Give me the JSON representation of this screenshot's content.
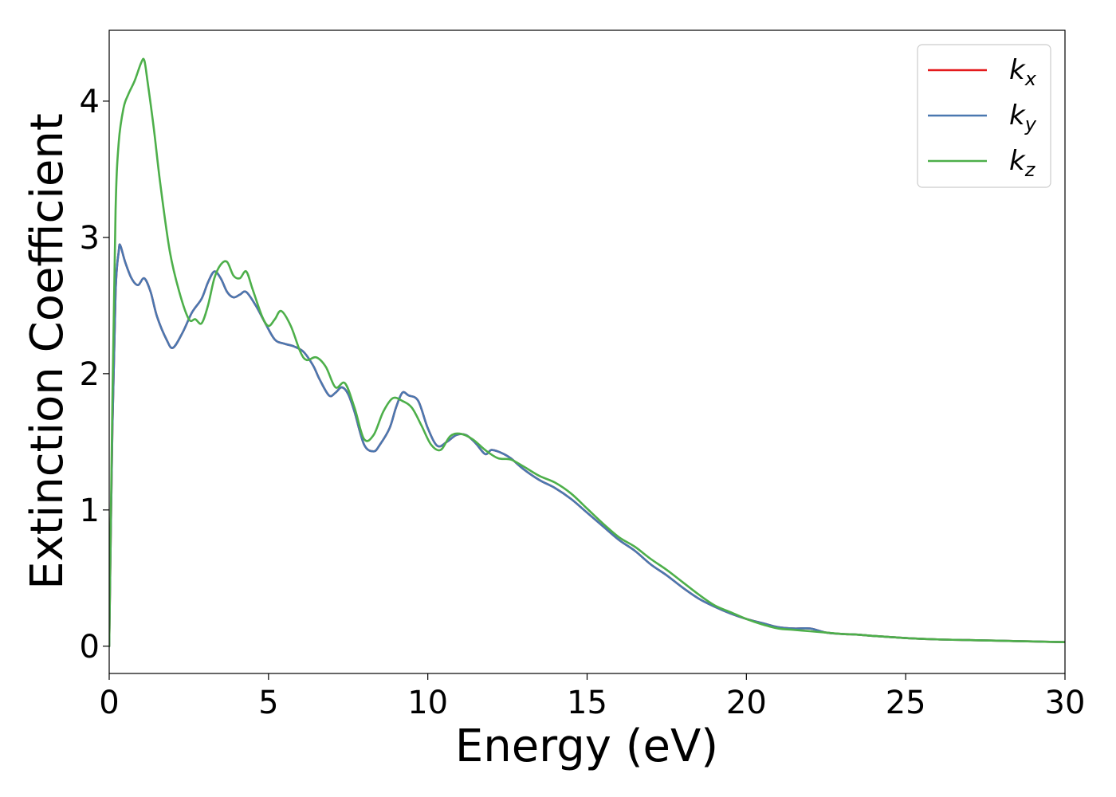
{
  "chart_data": {
    "type": "line",
    "xlabel": "Energy (eV)",
    "ylabel": "Extinction Coefficient",
    "xlim": [
      0,
      30
    ],
    "ylim": [
      -0.2,
      4.52
    ],
    "xticks": [
      0,
      5,
      10,
      15,
      20,
      25,
      30
    ],
    "yticks": [
      0,
      1,
      2,
      3,
      4
    ],
    "grid": false,
    "legend_position": "top-right",
    "series": [
      {
        "name": "kx",
        "label_base": "k",
        "label_sub": "x",
        "color": "#e41a1c",
        "x": [
          0,
          0.1,
          0.2,
          0.3,
          0.35,
          0.5,
          0.7,
          0.9,
          1.1,
          1.3,
          1.5,
          1.8,
          2.0,
          2.3,
          2.6,
          2.9,
          3.1,
          3.3,
          3.5,
          3.7,
          3.9,
          4.1,
          4.3,
          4.6,
          4.9,
          5.2,
          5.5,
          5.8,
          6.1,
          6.4,
          6.6,
          6.9,
          7.1,
          7.3,
          7.5,
          7.7,
          8.0,
          8.3,
          8.5,
          8.8,
          9.0,
          9.2,
          9.4,
          9.7,
          10.0,
          10.3,
          10.6,
          10.9,
          11.2,
          11.5,
          11.8,
          12.0,
          12.3,
          12.6,
          13.0,
          13.5,
          14.0,
          14.5,
          15.0,
          15.5,
          16.0,
          16.5,
          17.0,
          17.5,
          18.0,
          18.5,
          19.0,
          19.5,
          20.0,
          20.5,
          21.0,
          21.5,
          22.0,
          22.5,
          23.0,
          23.5,
          24.0,
          25.0,
          26.0,
          27.0,
          28.0,
          29.0,
          30.0
        ],
        "y": [
          0.0,
          1.6,
          2.6,
          2.9,
          2.94,
          2.82,
          2.7,
          2.65,
          2.7,
          2.6,
          2.42,
          2.25,
          2.19,
          2.3,
          2.45,
          2.55,
          2.67,
          2.75,
          2.7,
          2.6,
          2.56,
          2.58,
          2.6,
          2.5,
          2.37,
          2.25,
          2.22,
          2.2,
          2.16,
          2.06,
          1.96,
          1.84,
          1.86,
          1.9,
          1.85,
          1.72,
          1.48,
          1.43,
          1.48,
          1.6,
          1.75,
          1.86,
          1.84,
          1.8,
          1.6,
          1.47,
          1.5,
          1.55,
          1.55,
          1.49,
          1.41,
          1.44,
          1.42,
          1.38,
          1.3,
          1.22,
          1.16,
          1.08,
          0.98,
          0.88,
          0.78,
          0.7,
          0.6,
          0.52,
          0.43,
          0.35,
          0.29,
          0.24,
          0.2,
          0.17,
          0.14,
          0.13,
          0.13,
          0.1,
          0.09,
          0.085,
          0.075,
          0.06,
          0.05,
          0.045,
          0.04,
          0.035,
          0.03
        ]
      },
      {
        "name": "ky",
        "label_base": "k",
        "label_sub": "y",
        "color": "#4a78b0",
        "x": [
          0,
          0.1,
          0.2,
          0.3,
          0.35,
          0.5,
          0.7,
          0.9,
          1.1,
          1.3,
          1.5,
          1.8,
          2.0,
          2.3,
          2.6,
          2.9,
          3.1,
          3.3,
          3.5,
          3.7,
          3.9,
          4.1,
          4.3,
          4.6,
          4.9,
          5.2,
          5.5,
          5.8,
          6.1,
          6.4,
          6.6,
          6.9,
          7.1,
          7.3,
          7.5,
          7.7,
          8.0,
          8.3,
          8.5,
          8.8,
          9.0,
          9.2,
          9.4,
          9.7,
          10.0,
          10.3,
          10.6,
          10.9,
          11.2,
          11.5,
          11.8,
          12.0,
          12.3,
          12.6,
          13.0,
          13.5,
          14.0,
          14.5,
          15.0,
          15.5,
          16.0,
          16.5,
          17.0,
          17.5,
          18.0,
          18.5,
          19.0,
          19.5,
          20.0,
          20.5,
          21.0,
          21.5,
          22.0,
          22.5,
          23.0,
          23.5,
          24.0,
          25.0,
          26.0,
          27.0,
          28.0,
          29.0,
          30.0
        ],
        "y": [
          0.0,
          1.6,
          2.6,
          2.9,
          2.94,
          2.82,
          2.7,
          2.65,
          2.7,
          2.6,
          2.42,
          2.25,
          2.19,
          2.3,
          2.45,
          2.55,
          2.67,
          2.75,
          2.7,
          2.6,
          2.56,
          2.58,
          2.6,
          2.5,
          2.37,
          2.25,
          2.22,
          2.2,
          2.16,
          2.06,
          1.96,
          1.84,
          1.86,
          1.9,
          1.85,
          1.72,
          1.48,
          1.43,
          1.48,
          1.6,
          1.75,
          1.86,
          1.84,
          1.8,
          1.6,
          1.47,
          1.5,
          1.55,
          1.55,
          1.49,
          1.41,
          1.44,
          1.42,
          1.38,
          1.3,
          1.22,
          1.16,
          1.08,
          0.98,
          0.88,
          0.78,
          0.7,
          0.6,
          0.52,
          0.43,
          0.35,
          0.29,
          0.24,
          0.2,
          0.17,
          0.14,
          0.13,
          0.13,
          0.1,
          0.09,
          0.085,
          0.075,
          0.06,
          0.05,
          0.045,
          0.04,
          0.035,
          0.03
        ]
      },
      {
        "name": "kz",
        "label_base": "k",
        "label_sub": "z",
        "color": "#4daf4a",
        "x": [
          0,
          0.1,
          0.2,
          0.3,
          0.45,
          0.6,
          0.8,
          1.0,
          1.1,
          1.2,
          1.4,
          1.6,
          1.9,
          2.2,
          2.5,
          2.7,
          2.9,
          3.1,
          3.3,
          3.5,
          3.7,
          3.9,
          4.1,
          4.3,
          4.5,
          4.8,
          5.0,
          5.2,
          5.4,
          5.7,
          6.0,
          6.2,
          6.5,
          6.8,
          7.1,
          7.4,
          7.7,
          8.0,
          8.3,
          8.6,
          8.9,
          9.2,
          9.5,
          9.8,
          10.1,
          10.4,
          10.7,
          11.0,
          11.4,
          11.8,
          12.2,
          12.6,
          13.0,
          13.5,
          14.0,
          14.5,
          15.0,
          15.5,
          16.0,
          16.5,
          17.0,
          17.5,
          18.0,
          18.5,
          19.0,
          19.5,
          20.0,
          20.5,
          21.0,
          21.5,
          22.0,
          22.5,
          23.0,
          23.5,
          24.0,
          25.0,
          26.0,
          27.0,
          28.0,
          29.0,
          30.0
        ],
        "y": [
          0.0,
          1.8,
          3.2,
          3.7,
          3.95,
          4.05,
          4.15,
          4.28,
          4.3,
          4.15,
          3.8,
          3.4,
          2.9,
          2.6,
          2.4,
          2.4,
          2.37,
          2.5,
          2.7,
          2.8,
          2.82,
          2.72,
          2.7,
          2.75,
          2.62,
          2.42,
          2.35,
          2.4,
          2.46,
          2.35,
          2.16,
          2.1,
          2.12,
          2.05,
          1.9,
          1.93,
          1.75,
          1.52,
          1.55,
          1.72,
          1.82,
          1.8,
          1.75,
          1.62,
          1.48,
          1.44,
          1.54,
          1.56,
          1.52,
          1.44,
          1.38,
          1.37,
          1.32,
          1.25,
          1.2,
          1.12,
          1.01,
          0.9,
          0.8,
          0.73,
          0.64,
          0.56,
          0.47,
          0.38,
          0.3,
          0.25,
          0.2,
          0.16,
          0.13,
          0.12,
          0.11,
          0.1,
          0.09,
          0.085,
          0.075,
          0.06,
          0.05,
          0.045,
          0.04,
          0.035,
          0.03
        ]
      }
    ]
  }
}
